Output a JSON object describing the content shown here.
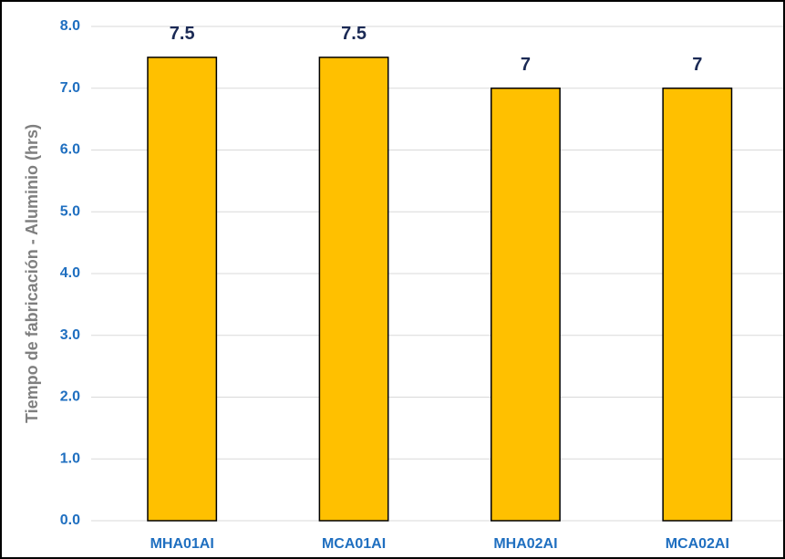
{
  "chart_data": {
    "type": "bar",
    "y_axis_label": "Tiempo de fabricación - Aluminio (hrs)",
    "categories": [
      "MHA01AI",
      "MCA01AI",
      "MHA02AI",
      "MCA02AI"
    ],
    "values": [
      7.5,
      7.5,
      7,
      7
    ],
    "color": "#ffc000",
    "ylim": [
      0,
      8
    ],
    "yticks": [
      {
        "value": 0,
        "label": "0.0"
      },
      {
        "value": 1,
        "label": "1.0"
      },
      {
        "value": 2,
        "label": "2.0"
      },
      {
        "value": 3,
        "label": "3.0"
      },
      {
        "value": 4,
        "label": "4.0"
      },
      {
        "value": 5,
        "label": "5.0"
      },
      {
        "value": 6,
        "label": "6.0"
      },
      {
        "value": 7,
        "label": "7.0"
      },
      {
        "value": 8,
        "label": "8.0"
      }
    ],
    "grid": true
  }
}
